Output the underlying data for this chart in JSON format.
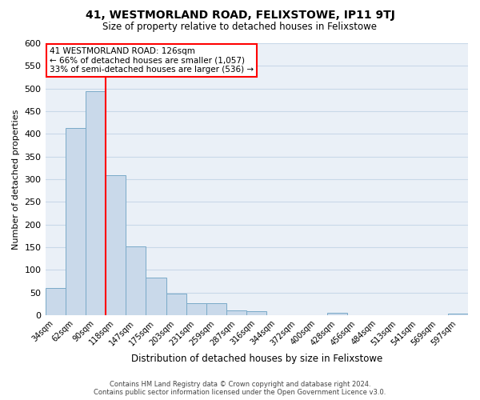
{
  "title": "41, WESTMORLAND ROAD, FELIXSTOWE, IP11 9TJ",
  "subtitle": "Size of property relative to detached houses in Felixstowe",
  "xlabel": "Distribution of detached houses by size in Felixstowe",
  "ylabel": "Number of detached properties",
  "bar_labels": [
    "34sqm",
    "62sqm",
    "90sqm",
    "118sqm",
    "147sqm",
    "175sqm",
    "203sqm",
    "231sqm",
    "259sqm",
    "287sqm",
    "316sqm",
    "344sqm",
    "372sqm",
    "400sqm",
    "428sqm",
    "456sqm",
    "484sqm",
    "513sqm",
    "541sqm",
    "569sqm",
    "597sqm"
  ],
  "bar_heights": [
    60,
    413,
    494,
    308,
    151,
    82,
    47,
    26,
    27,
    10,
    8,
    0,
    0,
    0,
    5,
    0,
    0,
    0,
    0,
    0,
    4
  ],
  "bar_color": "#c9d9ea",
  "bar_edge_color": "#7aaac8",
  "grid_color": "#c8d8e8",
  "background_color": "#eaf0f7",
  "vline_color": "red",
  "annotation_title": "41 WESTMORLAND ROAD: 126sqm",
  "annotation_line1": "← 66% of detached houses are smaller (1,057)",
  "annotation_line2": "33% of semi-detached houses are larger (536) →",
  "annotation_box_color": "white",
  "annotation_box_edge_color": "red",
  "ylim": [
    0,
    600
  ],
  "yticks": [
    0,
    50,
    100,
    150,
    200,
    250,
    300,
    350,
    400,
    450,
    500,
    550,
    600
  ],
  "footer_line1": "Contains HM Land Registry data © Crown copyright and database right 2024.",
  "footer_line2": "Contains public sector information licensed under the Open Government Licence v3.0."
}
